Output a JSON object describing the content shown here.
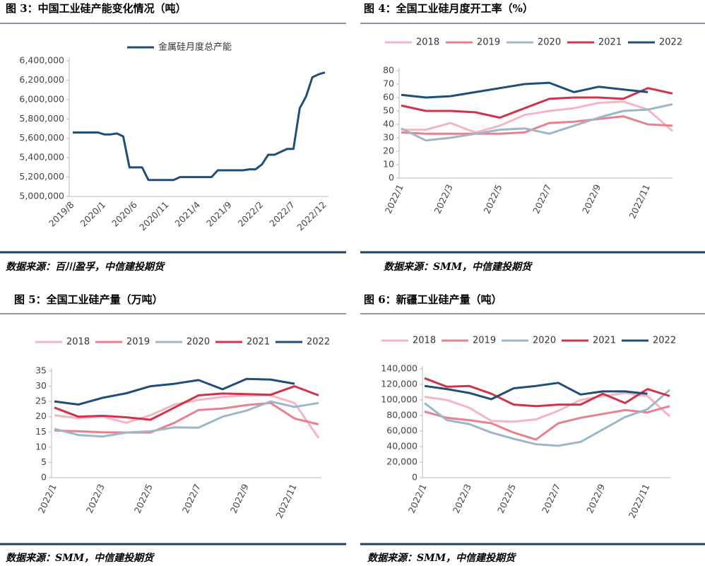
{
  "chart_data": [
    {
      "type": "line",
      "title": "图 3：中国工业硅产能变化情况（吨）",
      "source": "数据来源：百川盈孚，中信建投期货",
      "categories": [
        "2019/8",
        null,
        null,
        null,
        null,
        "2020/1",
        null,
        null,
        null,
        null,
        "2020/6",
        null,
        null,
        null,
        null,
        "2020/11",
        null,
        null,
        null,
        null,
        "2021/4",
        null,
        null,
        null,
        null,
        "2021/9",
        null,
        null,
        null,
        null,
        "2022/2",
        null,
        null,
        null,
        null,
        "2022/7",
        null,
        null,
        null,
        null,
        "2022/12"
      ],
      "series": [
        {
          "name": "金属硅月度总产能",
          "color": "#1f4e79",
          "values": [
            5660000,
            5660000,
            5660000,
            5660000,
            5660000,
            5640000,
            5640000,
            5650000,
            5620000,
            5300000,
            5300000,
            5300000,
            5170000,
            5170000,
            5170000,
            5170000,
            5170000,
            5200000,
            5200000,
            5200000,
            5200000,
            5200000,
            5200000,
            5270000,
            5270000,
            5270000,
            5270000,
            5270000,
            5280000,
            5280000,
            5330000,
            5430000,
            5430000,
            5460000,
            5490000,
            5490000,
            5910000,
            6030000,
            6230000,
            6260000,
            6280000
          ]
        }
      ],
      "ylim": [
        5000000,
        6400000
      ],
      "yticks": [
        {
          "value": 5000000,
          "label": "5,000,000"
        },
        {
          "value": 5200000,
          "label": "5,200,000"
        },
        {
          "value": 5400000,
          "label": "5,400,000"
        },
        {
          "value": 5600000,
          "label": "5,600,000"
        },
        {
          "value": 5800000,
          "label": "5,800,000"
        },
        {
          "value": 6000000,
          "label": "6,000,000"
        },
        {
          "value": 6200000,
          "label": "6,200,000"
        },
        {
          "value": 6400000,
          "label": "6,400,000"
        }
      ],
      "grid": false,
      "legend": "top"
    },
    {
      "type": "line",
      "title": "图 4：全国工业硅月度开工率（%）",
      "source": "数据来源：SMM，中信建投期货",
      "categories": [
        "2022/1",
        null,
        "2022/3",
        null,
        "2022/5",
        null,
        "2022/7",
        null,
        "2022/9",
        null,
        "2022/11",
        null
      ],
      "series": [
        {
          "name": "2018",
          "color": "#f4b6c2",
          "values": [
            36,
            36,
            41,
            34,
            39,
            47,
            50,
            52,
            56,
            57,
            51,
            35
          ]
        },
        {
          "name": "2019",
          "color": "#e8808f",
          "values": [
            34,
            33,
            33,
            33,
            33,
            34,
            41,
            42,
            44,
            46,
            40,
            39
          ]
        },
        {
          "name": "2020",
          "color": "#9db7c9",
          "values": [
            37,
            28,
            30,
            33,
            36,
            37,
            33,
            39,
            45,
            50,
            51,
            55
          ]
        },
        {
          "name": "2021",
          "color": "#d0334a",
          "values": [
            54,
            50,
            50,
            49,
            45,
            52,
            59,
            60,
            60,
            59,
            67,
            63
          ]
        },
        {
          "name": "2022",
          "color": "#1f4e79",
          "values": [
            62,
            60,
            61,
            64,
            67,
            70,
            71,
            64,
            68,
            66,
            64,
            null
          ]
        }
      ],
      "ylim": [
        0,
        80
      ],
      "yticks": [
        0,
        10,
        20,
        30,
        40,
        50,
        60,
        70,
        80
      ],
      "grid": false,
      "legend": "top"
    },
    {
      "type": "line",
      "title": "图 5：全国工业硅产量（万吨）",
      "source": "数据来源：SMM，中信建投期货",
      "categories": [
        "2022/1",
        null,
        "2022/3",
        null,
        "2022/5",
        null,
        "2022/7",
        null,
        "2022/9",
        null,
        "2022/11",
        null
      ],
      "series": [
        {
          "name": "2018",
          "color": "#f4b6c2",
          "values": [
            20.5,
            19.5,
            20,
            18,
            20.5,
            24,
            25.5,
            26.5,
            27,
            27,
            24.5,
            13
          ]
        },
        {
          "name": "2019",
          "color": "#e8808f",
          "values": [
            15.5,
            15.2,
            14.9,
            14.8,
            14.8,
            18,
            22.2,
            22.7,
            23.8,
            24.5,
            19.4,
            17.5
          ]
        },
        {
          "name": "2020",
          "color": "#9db7c9",
          "values": [
            16,
            14,
            13.5,
            14.8,
            15.2,
            16.5,
            16.4,
            20,
            22,
            25,
            23.2,
            24.5
          ]
        },
        {
          "name": "2021",
          "color": "#d0334a",
          "values": [
            23,
            20,
            20.3,
            19.8,
            19,
            23,
            27,
            27.6,
            27.4,
            27.2,
            30,
            27
          ]
        },
        {
          "name": "2022",
          "color": "#1f4e79",
          "values": [
            25,
            24,
            26.2,
            27.7,
            30,
            30.8,
            32,
            29,
            32.4,
            32.2,
            30.8,
            null
          ]
        }
      ],
      "ylim": [
        0,
        35
      ],
      "yticks": [
        0,
        5,
        10,
        15,
        20,
        25,
        30,
        35
      ],
      "grid": false,
      "legend": "top"
    },
    {
      "type": "line",
      "title": "图 6：新疆工业硅产量（吨）",
      "source": "数据来源：SMM，中信建投期货",
      "categories": [
        "2022/1",
        null,
        "2022/3",
        null,
        "2022/5",
        null,
        "2022/7",
        null,
        "2022/9",
        null,
        "2022/11",
        null
      ],
      "series": [
        {
          "name": "2018",
          "color": "#f4b6c2",
          "values": [
            104000,
            100000,
            90000,
            73000,
            72000,
            75000,
            86000,
            100000,
            105000,
            109000,
            105000,
            79000
          ]
        },
        {
          "name": "2019",
          "color": "#e8808f",
          "values": [
            85000,
            77000,
            74000,
            70000,
            58000,
            49000,
            70000,
            77000,
            82000,
            87000,
            84000,
            92000
          ]
        },
        {
          "name": "2020",
          "color": "#9db7c9",
          "values": [
            96000,
            74000,
            69000,
            58000,
            50000,
            43000,
            41000,
            46000,
            62000,
            78000,
            88000,
            113000
          ]
        },
        {
          "name": "2021",
          "color": "#d0334a",
          "values": [
            128000,
            117000,
            118000,
            108000,
            94000,
            92000,
            94000,
            94000,
            108000,
            96000,
            114000,
            105000
          ]
        },
        {
          "name": "2022",
          "color": "#1f4e79",
          "values": [
            118000,
            114000,
            109000,
            101000,
            115000,
            118000,
            122000,
            107000,
            111000,
            111000,
            108000,
            null
          ]
        }
      ],
      "ylim": [
        0,
        140000
      ],
      "yticks": [
        0,
        {
          "value": 20000,
          "label": "20,000"
        },
        {
          "value": 40000,
          "label": "40,000"
        },
        {
          "value": 60000,
          "label": "60,000"
        },
        {
          "value": 80000,
          "label": "80,000"
        },
        {
          "value": 100000,
          "label": "100,000"
        },
        {
          "value": 120000,
          "label": "120,000"
        },
        {
          "value": 140000,
          "label": "140,000"
        }
      ],
      "grid": false,
      "legend": "top"
    }
  ]
}
